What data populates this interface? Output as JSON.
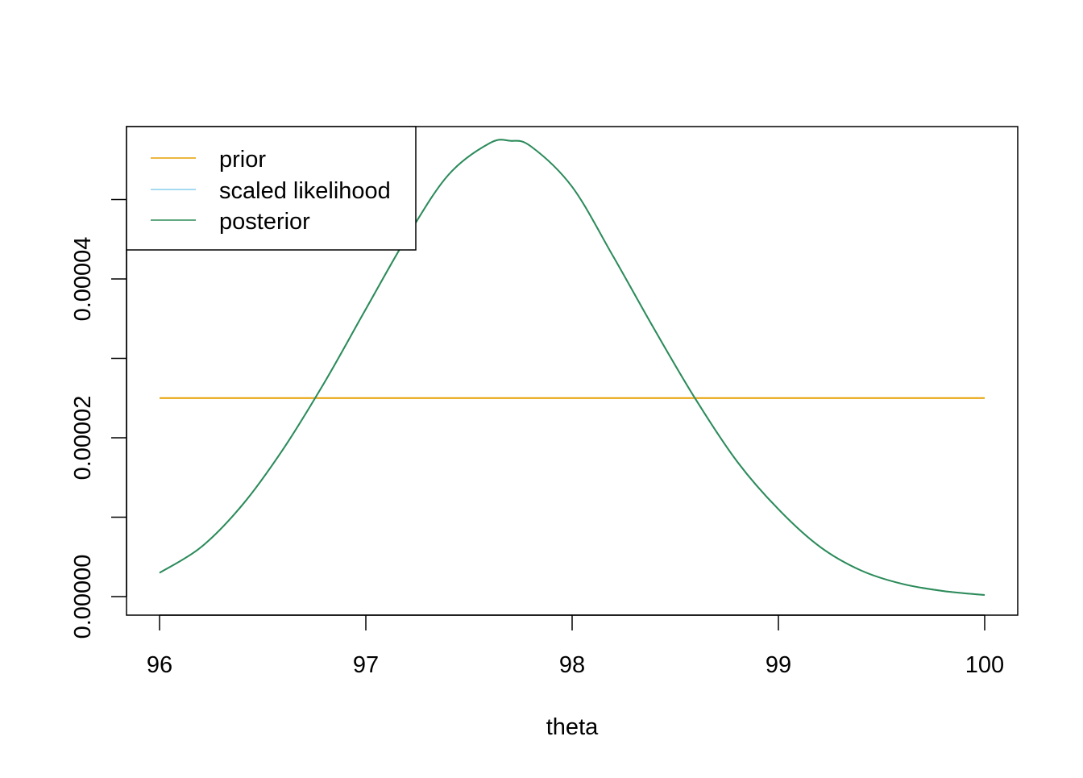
{
  "chart_data": {
    "type": "line",
    "title": "",
    "xlabel": "theta",
    "ylabel": "",
    "xlim": [
      96,
      100
    ],
    "ylim": [
      -2.2e-06,
      5.92e-05
    ],
    "x_ticks": [
      96,
      97,
      98,
      99,
      100
    ],
    "x_tick_labels": [
      "96",
      "97",
      "98",
      "99",
      "100"
    ],
    "y_ticks": [
      0,
      1e-05,
      2e-05,
      3e-05,
      4e-05,
      5e-05
    ],
    "y_tick_labels": [
      "0.00000",
      "",
      "0.00002",
      "",
      "0.00004",
      ""
    ],
    "grid": false,
    "legend": {
      "position": "top-left",
      "entries": [
        "prior",
        "scaled likelihood",
        "posterior"
      ]
    },
    "series": [
      {
        "name": "prior",
        "color": "#E69F00",
        "x": [
          96,
          100
        ],
        "y": [
          2.5e-05,
          2.5e-05
        ]
      },
      {
        "name": "scaled likelihood",
        "color": "#87CEEB",
        "x": [
          96.0,
          96.2,
          96.4,
          96.6,
          96.8,
          97.0,
          97.2,
          97.4,
          97.6,
          97.7,
          97.8,
          98.0,
          98.2,
          98.4,
          98.6,
          98.8,
          99.0,
          99.2,
          99.4,
          99.6,
          99.8,
          100.0
        ],
        "y": [
          3e-06,
          6.2e-06,
          1.15e-05,
          1.86e-05,
          2.7e-05,
          3.62e-05,
          4.53e-05,
          5.31e-05,
          5.71e-05,
          5.74e-05,
          5.67e-05,
          5.16e-05,
          4.28e-05,
          3.36e-05,
          2.48e-05,
          1.7e-05,
          1.1e-05,
          6.3e-06,
          3.3e-06,
          1.6e-06,
          7e-07,
          2e-07
        ]
      },
      {
        "name": "posterior",
        "color": "#2E8B57",
        "x": [
          96.0,
          96.2,
          96.4,
          96.6,
          96.8,
          97.0,
          97.2,
          97.4,
          97.6,
          97.7,
          97.8,
          98.0,
          98.2,
          98.4,
          98.6,
          98.8,
          99.0,
          99.2,
          99.4,
          99.6,
          99.8,
          100.0
        ],
        "y": [
          3e-06,
          6.2e-06,
          1.15e-05,
          1.86e-05,
          2.7e-05,
          3.62e-05,
          4.53e-05,
          5.31e-05,
          5.71e-05,
          5.74e-05,
          5.67e-05,
          5.16e-05,
          4.28e-05,
          3.36e-05,
          2.48e-05,
          1.7e-05,
          1.1e-05,
          6.3e-06,
          3.3e-06,
          1.6e-06,
          7e-07,
          2e-07
        ]
      }
    ]
  }
}
